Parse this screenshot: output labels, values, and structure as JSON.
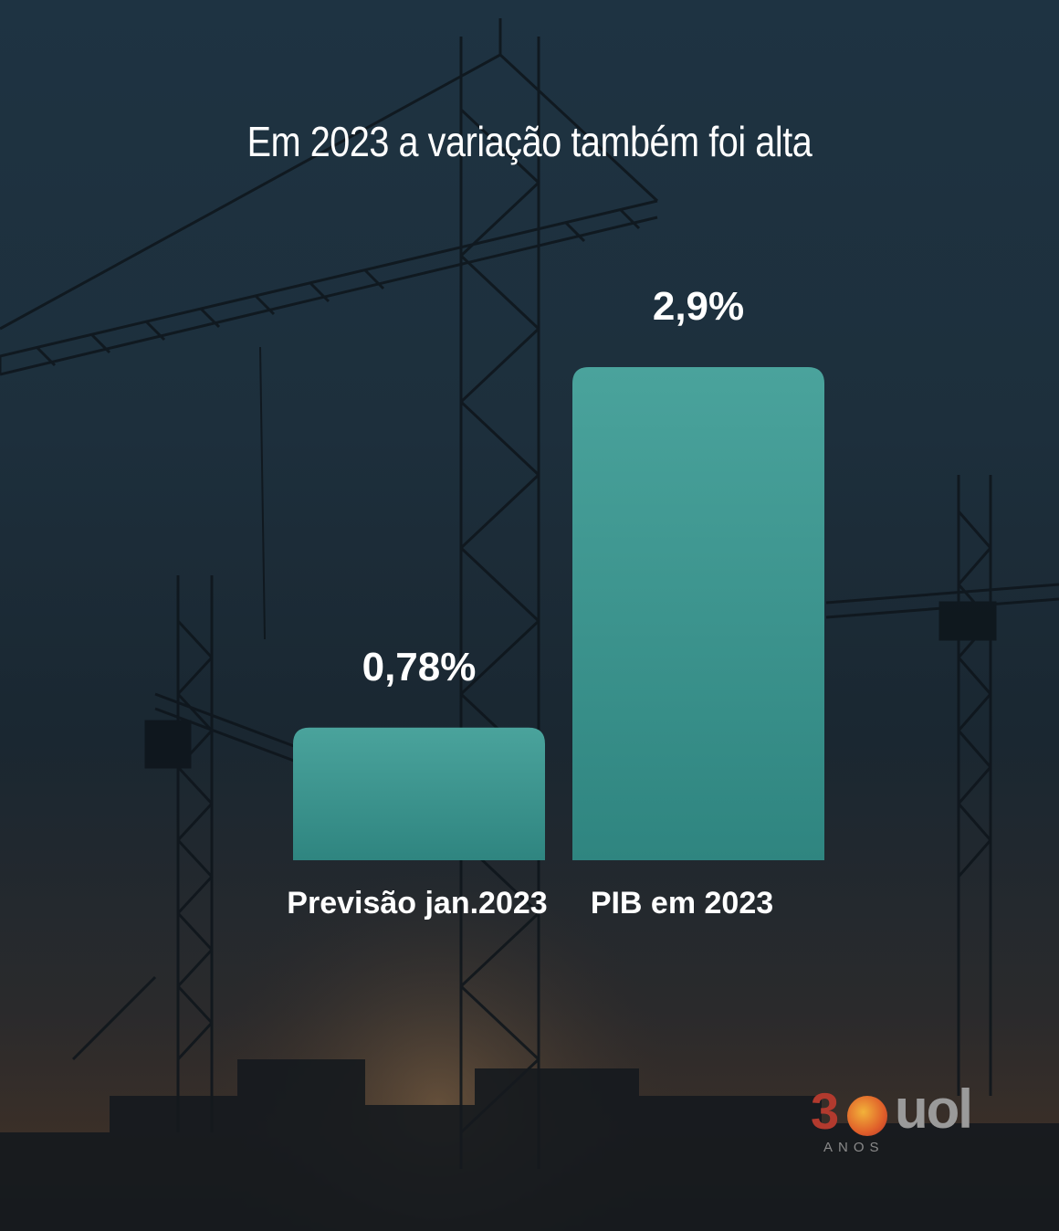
{
  "chart_data": {
    "type": "bar",
    "title": "Em 2023 a variação também foi alta",
    "categories": [
      "Previsão jan.2023",
      "PIB em 2023"
    ],
    "values": [
      0.78,
      2.9
    ],
    "value_labels": [
      "0,78%",
      "2,9%"
    ],
    "xlabel": "",
    "ylabel": "",
    "ylim": [
      0,
      2.9
    ],
    "grid": false,
    "legend": "none",
    "bar_color": "#3f9a93"
  },
  "branding": {
    "number": "3",
    "brand": "uol",
    "subtitle": "ANOS"
  }
}
